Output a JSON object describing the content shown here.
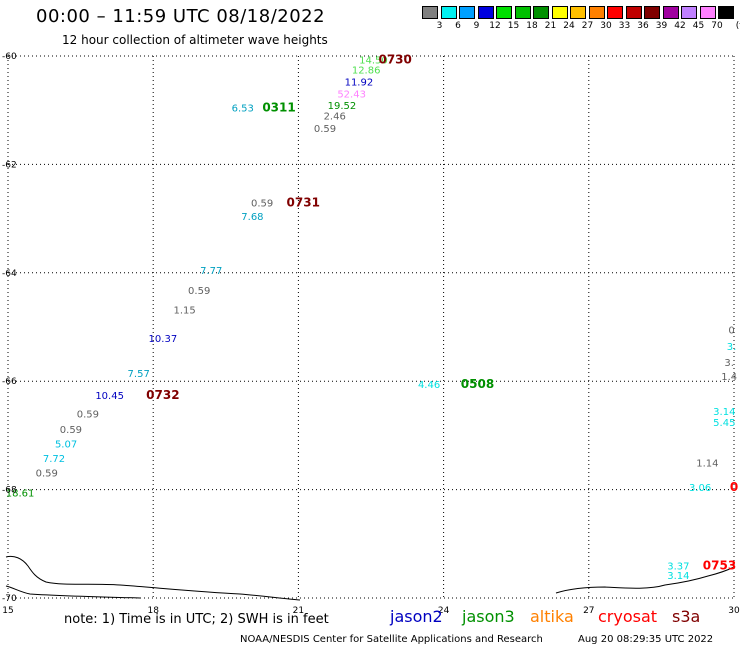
{
  "header": {
    "title": "00:00 – 11:59 UTC 08/18/2022",
    "subtitle": "12 hour collection of altimeter wave heights"
  },
  "colorbar": {
    "swatch_colors": [
      "#808080",
      "#00f0f0",
      "#00a0ff",
      "#0000e0",
      "#00e000",
      "#00c000",
      "#009000",
      "#ffff00",
      "#ffc000",
      "#ff8000",
      "#ff0000",
      "#c00000",
      "#800000",
      "#a000a0",
      "#c080ff",
      "#ff80ff",
      "#000000"
    ],
    "ticks": [
      "3",
      "6",
      "9",
      "12",
      "15",
      "18",
      "21",
      "24",
      "27",
      "30",
      "33",
      "36",
      "39",
      "42",
      "45",
      "70"
    ],
    "unit": "(ft)"
  },
  "map": {
    "lon_range": [
      15,
      30
    ],
    "lat_range": [
      -70,
      -60
    ],
    "lon_ticks": [
      "15",
      "18",
      "21",
      "24",
      "27",
      "30"
    ],
    "lat_ticks": [
      "-60",
      "-62",
      "-64",
      "-66",
      "-68",
      "-70"
    ],
    "gridlines": "dotted",
    "observations": [
      {
        "text": "14.50",
        "lon": 22.55,
        "lat": -60.06,
        "color": "#50e050"
      },
      {
        "text": "12.86",
        "lon": 22.4,
        "lat": -60.25,
        "color": "#50e050"
      },
      {
        "text": "11.92",
        "lon": 22.25,
        "lat": -60.47,
        "color": "#0000c0"
      },
      {
        "text": "52.43",
        "lon": 22.1,
        "lat": -60.69,
        "color": "#ff80ff"
      },
      {
        "text": "19.52",
        "lon": 21.9,
        "lat": -60.9,
        "color": "#009000"
      },
      {
        "text": "2.46",
        "lon": 21.75,
        "lat": -61.1,
        "color": "#606060"
      },
      {
        "text": "0.59",
        "lon": 21.55,
        "lat": -61.33,
        "color": "#606060"
      },
      {
        "text": "6.53",
        "lon": 19.85,
        "lat": -60.95,
        "color": "#00a0c0"
      },
      {
        "text": "0.59",
        "lon": 20.25,
        "lat": -62.7,
        "color": "#606060"
      },
      {
        "text": "7.68",
        "lon": 20.05,
        "lat": -62.95,
        "color": "#00a0c0"
      },
      {
        "text": "7.77",
        "lon": 19.2,
        "lat": -63.95,
        "color": "#00a0c0"
      },
      {
        "text": "0.59",
        "lon": 18.95,
        "lat": -64.32,
        "color": "#606060"
      },
      {
        "text": "1.15",
        "lon": 18.65,
        "lat": -64.68,
        "color": "#606060"
      },
      {
        "text": "10.37",
        "lon": 18.2,
        "lat": -65.2,
        "color": "#0000c0"
      },
      {
        "text": "7.57",
        "lon": 17.7,
        "lat": -65.85,
        "color": "#00a0c0"
      },
      {
        "text": "10.45",
        "lon": 17.1,
        "lat": -66.25,
        "color": "#0000c0"
      },
      {
        "text": "0.59",
        "lon": 16.65,
        "lat": -66.6,
        "color": "#606060"
      },
      {
        "text": "0.59",
        "lon": 16.3,
        "lat": -66.88,
        "color": "#606060"
      },
      {
        "text": "5.07",
        "lon": 16.2,
        "lat": -67.15,
        "color": "#00c0e0"
      },
      {
        "text": "7.72",
        "lon": 15.95,
        "lat": -67.42,
        "color": "#00c0e0"
      },
      {
        "text": "0.59",
        "lon": 15.8,
        "lat": -67.68,
        "color": "#606060"
      },
      {
        "text": "18.61",
        "lon": 15.25,
        "lat": -68.05,
        "color": "#009000"
      },
      {
        "text": "4.46",
        "lon": 23.7,
        "lat": -66.05,
        "color": "#00e0e0"
      },
      {
        "text": "0",
        "lon": 29.95,
        "lat": -65.05,
        "color": "#606060"
      },
      {
        "text": "3.",
        "lon": 29.95,
        "lat": -65.35,
        "color": "#00e0e0"
      },
      {
        "text": "3.",
        "lon": 29.9,
        "lat": -65.65,
        "color": "#606060"
      },
      {
        "text": "1.4",
        "lon": 29.9,
        "lat": -65.9,
        "color": "#606060"
      },
      {
        "text": "3.14",
        "lon": 29.8,
        "lat": -66.55,
        "color": "#00e0e0"
      },
      {
        "text": "5.45",
        "lon": 29.8,
        "lat": -66.75,
        "color": "#00e0e0"
      },
      {
        "text": "1.14",
        "lon": 29.45,
        "lat": -67.5,
        "color": "#606060"
      },
      {
        "text": "3.06",
        "lon": 29.3,
        "lat": -67.95,
        "color": "#00e0e0"
      },
      {
        "text": "3.37",
        "lon": 28.85,
        "lat": -69.4,
        "color": "#00e0e0"
      },
      {
        "text": "3.14",
        "lon": 28.85,
        "lat": -69.58,
        "color": "#00e0e0"
      }
    ],
    "time_stamps": [
      {
        "text": "0730",
        "lon": 23.0,
        "lat": -60.06,
        "color": "#800000"
      },
      {
        "text": "0311",
        "lon": 20.6,
        "lat": -60.95,
        "color": "#009000"
      },
      {
        "text": "0731",
        "lon": 21.1,
        "lat": -62.7,
        "color": "#800000"
      },
      {
        "text": "0732",
        "lon": 18.2,
        "lat": -66.25,
        "color": "#800000"
      },
      {
        "text": "0508",
        "lon": 24.7,
        "lat": -66.05,
        "color": "#009000"
      },
      {
        "text": "0",
        "lon": 30.0,
        "lat": -67.95,
        "color": "#ff0000"
      },
      {
        "text": "0753",
        "lon": 29.7,
        "lat": -69.4,
        "color": "#ff0000"
      }
    ]
  },
  "footer": {
    "note": "note: 1) Time is in UTC; 2) SWH is in feet",
    "satellites": [
      {
        "name": "jason2",
        "color": "#0000c0"
      },
      {
        "name": "jason3",
        "color": "#009000"
      },
      {
        "name": "altika",
        "color": "#ff8000"
      },
      {
        "name": "cryosat",
        "color": "#ff0000"
      },
      {
        "name": "s3a",
        "color": "#800000"
      }
    ],
    "credit": "NOAA/NESDIS Center for Satellite Applications and Research",
    "timestamp": "Aug 20 08:29:35 UTC 2022"
  }
}
